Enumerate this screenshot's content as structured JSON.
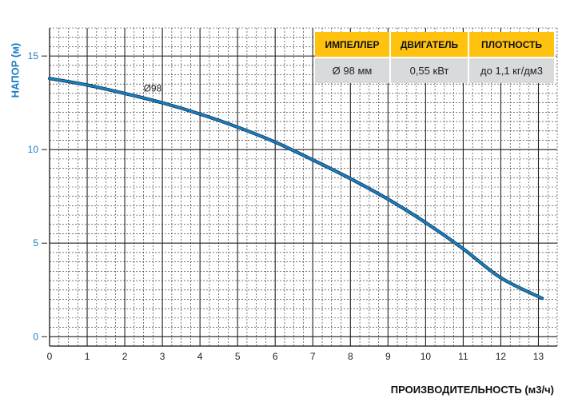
{
  "chart_data": {
    "type": "line",
    "xlabel": "ПРОИЗВОДИТЕЛЬНОСТЬ (м3/ч)",
    "ylabel": "НАПОР (м)",
    "xlim": [
      0,
      13.5
    ],
    "ylim": [
      -0.5,
      16.5
    ],
    "x_ticks": [
      "0",
      "1",
      "2",
      "3",
      "4",
      "5",
      "6",
      "7",
      "8",
      "9",
      "10",
      "11",
      "12",
      "13"
    ],
    "y_ticks": [
      "0",
      "5",
      "10",
      "15"
    ],
    "x_tick_values": [
      0,
      1,
      2,
      3,
      4,
      5,
      6,
      7,
      8,
      9,
      10,
      11,
      12,
      13
    ],
    "y_tick_values": [
      0,
      5,
      10,
      15
    ],
    "grid": true,
    "series": [
      {
        "name": "Ø98",
        "color": "#1a7ec0",
        "x": [
          0,
          1,
          2,
          3,
          4,
          5,
          6,
          7,
          8,
          9,
          10,
          11,
          12,
          13.1
        ],
        "y": [
          13.8,
          13.45,
          13.0,
          12.5,
          11.9,
          11.2,
          10.4,
          9.45,
          8.45,
          7.35,
          6.1,
          4.7,
          3.15,
          2.05
        ]
      }
    ],
    "annotations": [
      {
        "text": "Ø98",
        "x": 2.5,
        "y": 13.1
      }
    ]
  },
  "spec_table": {
    "headers": [
      "ИМПЕЛЛЕР",
      "ДВИГАТЕЛЬ",
      "ПЛОТНОСТЬ"
    ],
    "values": [
      "Ø 98 мм",
      "0,55 кВт",
      "до 1,1 кг/дм3"
    ],
    "header_color": "#fec20f",
    "value_color": "#d9dadb"
  }
}
